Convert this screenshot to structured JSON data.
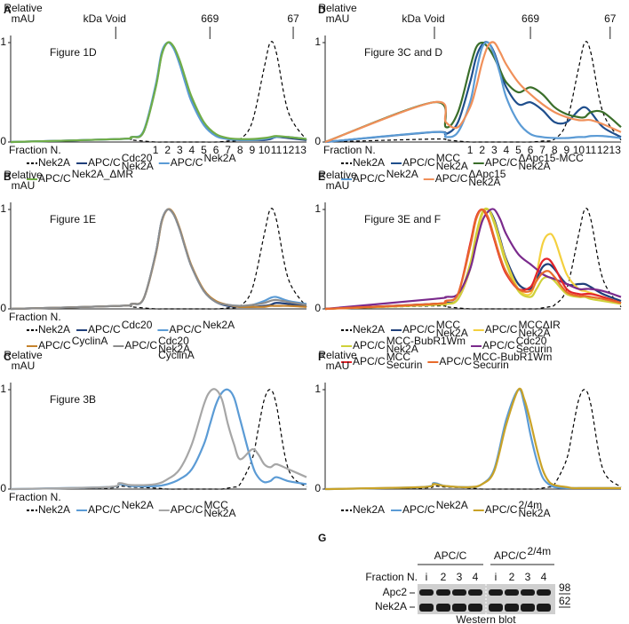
{
  "chart_data": [
    {
      "type": "line",
      "letter": "A",
      "title": "Figure 1D",
      "ylabel": [
        "Relative",
        "mAU"
      ],
      "xlabel": "Fraction N.",
      "kda_label": "kDa",
      "markers": [
        {
          "label": "Void",
          "x": -2.3
        },
        {
          "label": "669",
          "x": 5.5
        },
        {
          "label": "67",
          "x": 12.4
        }
      ],
      "x": [
        -11,
        -2,
        -1,
        0,
        1,
        1.5,
        2,
        2.5,
        3,
        3.5,
        4,
        5,
        6,
        7,
        8,
        9,
        10,
        10.5,
        11,
        12,
        13.5
      ],
      "xlim": [
        -11,
        13.5
      ],
      "ylim": [
        0,
        1
      ],
      "yticks": [
        0,
        1
      ],
      "xticks": [
        1,
        2,
        3,
        4,
        5,
        6,
        7,
        8,
        9,
        10,
        11,
        12,
        13
      ],
      "series": [
        {
          "name": "Nek2A",
          "color": "#000000",
          "dash": true,
          "values": [
            0,
            0.03,
            0.02,
            0.01,
            0,
            0,
            0,
            0,
            0,
            0,
            0,
            0,
            0,
            0.01,
            0.03,
            0.2,
            0.75,
            1.0,
            0.9,
            0.3,
            0.02
          ]
        },
        {
          "name": "APC/C",
          "sup": "Cdc20",
          "sub": "Nek2A",
          "color": "#1f3f7a",
          "values": [
            0,
            0.03,
            0.05,
            0.1,
            0.55,
            0.88,
            1.0,
            0.95,
            0.8,
            0.6,
            0.42,
            0.18,
            0.07,
            0.03,
            0.02,
            0.02,
            0.02,
            0.03,
            0.05,
            0.04,
            0.02
          ]
        },
        {
          "name": "APC/C",
          "sup": "Nek2A",
          "color": "#5b9bd5",
          "values": [
            0,
            0.03,
            0.05,
            0.11,
            0.57,
            0.9,
            1.0,
            0.94,
            0.78,
            0.58,
            0.4,
            0.17,
            0.06,
            0.03,
            0.02,
            0.02,
            0.03,
            0.04,
            0.05,
            0.05,
            0.03
          ]
        },
        {
          "name": "APC/C",
          "sup": "Nek2A_ΔMR",
          "color": "#70ad47",
          "values": [
            0,
            0.03,
            0.05,
            0.1,
            0.54,
            0.87,
            1.0,
            0.96,
            0.82,
            0.63,
            0.45,
            0.2,
            0.08,
            0.04,
            0.03,
            0.03,
            0.04,
            0.05,
            0.06,
            0.05,
            0.03
          ]
        }
      ]
    },
    {
      "type": "line",
      "letter": "B",
      "title": "Figure 1E",
      "ylabel": [
        "Relative",
        "mAU"
      ],
      "xlabel": "Fraction N.",
      "x": [
        -11,
        -2,
        -1,
        0,
        1,
        1.5,
        2,
        2.5,
        3,
        3.5,
        4,
        5,
        6,
        7,
        8,
        9,
        10,
        10.5,
        11,
        12,
        13.5
      ],
      "xlim": [
        -11,
        13.5
      ],
      "ylim": [
        0,
        1
      ],
      "yticks": [
        0,
        1
      ],
      "series": [
        {
          "name": "Nek2A",
          "color": "#000000",
          "dash": true,
          "values": [
            0,
            0.03,
            0.02,
            0.01,
            0,
            0,
            0,
            0,
            0,
            0,
            0,
            0,
            0,
            0.01,
            0.03,
            0.2,
            0.75,
            1.0,
            0.9,
            0.3,
            0.02
          ]
        },
        {
          "name": "APC/C",
          "sup": "Cdc20",
          "color": "#1f3f7a",
          "values": [
            0,
            0.03,
            0.05,
            0.1,
            0.55,
            0.88,
            1.0,
            0.95,
            0.8,
            0.6,
            0.42,
            0.18,
            0.07,
            0.03,
            0.02,
            0.02,
            0.03,
            0.04,
            0.06,
            0.05,
            0.03
          ]
        },
        {
          "name": "APC/C",
          "sup": "Nek2A",
          "color": "#5b9bd5",
          "values": [
            0,
            0.03,
            0.05,
            0.1,
            0.55,
            0.88,
            1.0,
            0.95,
            0.8,
            0.6,
            0.42,
            0.18,
            0.07,
            0.04,
            0.03,
            0.04,
            0.08,
            0.11,
            0.12,
            0.08,
            0.05
          ]
        },
        {
          "name": "APC/C",
          "sup": "CyclinA",
          "color": "#c5832d",
          "values": [
            0,
            0.03,
            0.05,
            0.1,
            0.54,
            0.87,
            1.0,
            0.96,
            0.81,
            0.61,
            0.43,
            0.19,
            0.08,
            0.04,
            0.02,
            0.02,
            0.02,
            0.03,
            0.03,
            0.03,
            0.02
          ]
        },
        {
          "name": "APC/C",
          "sup": "Cdc20",
          "sub": [
            "Nek2A",
            "CyclinA"
          ],
          "color": "#8c8c8c",
          "values": [
            0,
            0.03,
            0.05,
            0.1,
            0.55,
            0.88,
            1.0,
            0.95,
            0.8,
            0.6,
            0.42,
            0.18,
            0.07,
            0.04,
            0.03,
            0.04,
            0.06,
            0.08,
            0.09,
            0.07,
            0.04
          ]
        }
      ]
    },
    {
      "type": "line",
      "letter": "C",
      "title": "Figure 3B",
      "ylabel": [
        "Relative",
        "mAU"
      ],
      "xlabel": "Fraction N.",
      "x": [
        -11,
        -3,
        -2,
        -1,
        1,
        2,
        3,
        4,
        5,
        5.5,
        6,
        6.5,
        7,
        7.5,
        8,
        9,
        9.5,
        10,
        10.5,
        11,
        12,
        13.5
      ],
      "xlim": [
        -11,
        13.5
      ],
      "ylim": [
        0,
        1
      ],
      "yticks": [
        0,
        1
      ],
      "series": [
        {
          "name": "Nek2A",
          "color": "#000000",
          "dash": true,
          "values": [
            0,
            0.01,
            0.03,
            0.02,
            0.01,
            0,
            0,
            0,
            0,
            0,
            0,
            0,
            0.01,
            0.02,
            0.05,
            0.3,
            0.6,
            0.9,
            1.0,
            0.85,
            0.2,
            0.02
          ]
        },
        {
          "name": "APC/C",
          "sup": "Nek2A",
          "color": "#5b9bd5",
          "values": [
            0,
            0.02,
            0.05,
            0.03,
            0.03,
            0.05,
            0.1,
            0.2,
            0.45,
            0.65,
            0.85,
            0.97,
            1.0,
            0.92,
            0.7,
            0.25,
            0.12,
            0.07,
            0.08,
            0.12,
            0.08,
            0.05
          ]
        },
        {
          "name": "APC/C",
          "sup": "MCC",
          "sub": "Nek2A",
          "color": "#a6a6a6",
          "values": [
            0,
            0.02,
            0.06,
            0.04,
            0.05,
            0.1,
            0.2,
            0.45,
            0.85,
            0.98,
            1.0,
            0.9,
            0.65,
            0.45,
            0.3,
            0.4,
            0.35,
            0.25,
            0.22,
            0.25,
            0.2,
            0.12
          ]
        }
      ]
    },
    {
      "type": "line",
      "letter": "D",
      "title": "Figure 3C and D",
      "ylabel": [
        "Relative",
        "mAU"
      ],
      "xlabel": "Fraction N.",
      "kda_label": "kDa",
      "markers": [
        {
          "label": "Void",
          "x": -1.95
        },
        {
          "label": "669",
          "x": 6.0
        },
        {
          "label": "67",
          "x": 12.6
        }
      ],
      "x": [
        -11,
        -2,
        -1,
        0,
        1,
        1.5,
        2,
        2.5,
        3,
        3.5,
        4,
        5,
        6,
        7,
        8,
        9,
        10,
        10.5,
        11,
        12,
        13.5
      ],
      "xlim": [
        -11,
        13.5
      ],
      "ylim": [
        0,
        1
      ],
      "yticks": [
        0,
        1
      ],
      "xticks": [
        1,
        2,
        3,
        4,
        5,
        6,
        7,
        8,
        9,
        10,
        11,
        12,
        13
      ],
      "series": [
        {
          "name": "Nek2A",
          "color": "#000000",
          "dash": true,
          "values": [
            0,
            0.03,
            0.02,
            0.01,
            0,
            0,
            0,
            0,
            0,
            0,
            0,
            0,
            0,
            0.01,
            0.03,
            0.2,
            0.75,
            1.0,
            0.9,
            0.3,
            0.02
          ]
        },
        {
          "name": "APC/C",
          "sup": "MCC",
          "sub": "Nek2A",
          "color": "#1f4e8c",
          "values": [
            0,
            0.1,
            0.08,
            0.2,
            0.6,
            0.85,
            0.98,
            1.0,
            0.9,
            0.72,
            0.55,
            0.38,
            0.4,
            0.32,
            0.2,
            0.2,
            0.32,
            0.35,
            0.3,
            0.15,
            0.05
          ]
        },
        {
          "name": "APC/C",
          "sup": "ΔApc15-MCC",
          "sub": "Nek2A",
          "color": "#3a6e2a",
          "values": [
            0,
            0.4,
            0.15,
            0.3,
            0.75,
            0.95,
            1.0,
            0.95,
            0.85,
            0.72,
            0.6,
            0.5,
            0.55,
            0.48,
            0.35,
            0.28,
            0.25,
            0.25,
            0.3,
            0.3,
            0.15
          ]
        },
        {
          "name": "APC/C",
          "sup": "Nek2A",
          "color": "#5b9bd5",
          "values": [
            0,
            0.1,
            0.05,
            0.1,
            0.4,
            0.7,
            0.95,
            1.0,
            0.88,
            0.68,
            0.45,
            0.2,
            0.08,
            0.05,
            0.04,
            0.04,
            0.05,
            0.05,
            0.06,
            0.06,
            0.04
          ]
        },
        {
          "name": "APC/C",
          "sup": "ΔApc15",
          "sub": "Nek2A",
          "color": "#f0905a",
          "values": [
            0,
            0.4,
            0.2,
            0.15,
            0.35,
            0.55,
            0.8,
            0.97,
            1.0,
            0.9,
            0.78,
            0.6,
            0.48,
            0.38,
            0.3,
            0.25,
            0.22,
            0.22,
            0.22,
            0.18,
            0.1
          ]
        }
      ]
    },
    {
      "type": "line",
      "letter": "E",
      "title": "Figure 3E and F",
      "ylabel": [
        "Relative",
        "mAU"
      ],
      "x": [
        -11,
        -2,
        -1,
        0,
        1,
        1.5,
        2,
        2.5,
        3,
        3.5,
        4,
        5,
        6,
        6.5,
        7,
        7.5,
        8,
        9,
        10,
        10.5,
        11,
        12,
        13.5
      ],
      "xlim": [
        -11,
        13.5
      ],
      "ylim": [
        0,
        1
      ],
      "yticks": [
        0,
        1
      ],
      "series": [
        {
          "name": "Nek2A",
          "color": "#000000",
          "dash": true,
          "values": [
            0,
            0.03,
            0.02,
            0.01,
            0,
            0,
            0,
            0,
            0,
            0,
            0,
            0,
            0,
            0,
            0.01,
            0.02,
            0.04,
            0.2,
            0.75,
            1.0,
            0.9,
            0.3,
            0.02
          ]
        },
        {
          "name": "APC/C",
          "sup": "MCC",
          "sub": "Nek2A",
          "color": "#1f3f7a",
          "values": [
            0,
            0.05,
            0.06,
            0.1,
            0.4,
            0.7,
            0.95,
            1.0,
            0.9,
            0.7,
            0.5,
            0.25,
            0.2,
            0.3,
            0.42,
            0.45,
            0.4,
            0.25,
            0.25,
            0.25,
            0.22,
            0.15,
            0.08
          ]
        },
        {
          "name": "APC/C",
          "sup": "MCCΔIR",
          "sub": "Nek2A",
          "color": "#f4d03f",
          "values": [
            0,
            0.04,
            0.05,
            0.1,
            0.4,
            0.7,
            0.95,
            1.0,
            0.88,
            0.68,
            0.48,
            0.2,
            0.15,
            0.35,
            0.65,
            0.75,
            0.7,
            0.35,
            0.2,
            0.18,
            0.16,
            0.12,
            0.06
          ]
        },
        {
          "name": "APC/C",
          "sup": "MCC-BubR1Wm",
          "sub": "Nek2A",
          "color": "#cfd13a",
          "values": [
            0,
            0.04,
            0.05,
            0.1,
            0.45,
            0.75,
            0.97,
            1.0,
            0.86,
            0.65,
            0.45,
            0.18,
            0.12,
            0.2,
            0.3,
            0.32,
            0.28,
            0.15,
            0.12,
            0.12,
            0.1,
            0.08,
            0.05
          ]
        },
        {
          "name": "APC/C",
          "sup": "Cdc20",
          "sub": "Securin",
          "color": "#7a2a8c",
          "values": [
            0,
            0.1,
            0.12,
            0.15,
            0.4,
            0.65,
            0.88,
            0.98,
            1.0,
            0.9,
            0.75,
            0.55,
            0.45,
            0.4,
            0.35,
            0.32,
            0.3,
            0.25,
            0.2,
            0.2,
            0.2,
            0.18,
            0.12
          ]
        },
        {
          "name": "APC/C",
          "sup": "MCC",
          "sub": "Securin",
          "color": "#e3242b",
          "values": [
            0,
            0.05,
            0.08,
            0.15,
            0.65,
            0.92,
            1.0,
            0.9,
            0.7,
            0.5,
            0.35,
            0.2,
            0.22,
            0.35,
            0.48,
            0.5,
            0.42,
            0.2,
            0.15,
            0.15,
            0.15,
            0.12,
            0.06
          ]
        },
        {
          "name": "APC/C",
          "sup": "MCC-BubR1Wm",
          "sub": "Securin",
          "color": "#e86a2b",
          "values": [
            0,
            0.05,
            0.08,
            0.15,
            0.62,
            0.9,
            1.0,
            0.92,
            0.72,
            0.52,
            0.37,
            0.2,
            0.18,
            0.28,
            0.36,
            0.38,
            0.32,
            0.17,
            0.13,
            0.13,
            0.12,
            0.1,
            0.06
          ]
        }
      ]
    },
    {
      "type": "line",
      "letter": "F",
      "ylabel": [
        "Relative",
        "mAU"
      ],
      "x": [
        -11,
        -3,
        -2,
        -1,
        1,
        2,
        3,
        4,
        5,
        5.5,
        6,
        6.5,
        7,
        7.5,
        8,
        9,
        9.5,
        10,
        10.5,
        11,
        12,
        13.5
      ],
      "xlim": [
        -11,
        13.5
      ],
      "ylim": [
        0,
        1
      ],
      "yticks": [
        0,
        1
      ],
      "series": [
        {
          "name": "Nek2A",
          "color": "#000000",
          "dash": true,
          "values": [
            0,
            0.01,
            0.03,
            0.02,
            0.01,
            0,
            0,
            0,
            0,
            0,
            0,
            0,
            0.01,
            0.02,
            0.05,
            0.3,
            0.6,
            0.9,
            1.0,
            0.85,
            0.2,
            0.02
          ]
        },
        {
          "name": "APC/C",
          "sup": "Nek2A",
          "color": "#5b9bd5",
          "values": [
            0,
            0.02,
            0.06,
            0.03,
            0.02,
            0.05,
            0.2,
            0.7,
            1.0,
            0.85,
            0.55,
            0.3,
            0.12,
            0.05,
            0.02,
            0.01,
            0.01,
            0.01,
            0.01,
            0.01,
            0.01,
            0.01
          ]
        },
        {
          "name": "APC/C",
          "sup": "2/4m",
          "sub": "Nek2A",
          "color": "#c9a227",
          "values": [
            0,
            0.02,
            0.05,
            0.03,
            0.02,
            0.05,
            0.18,
            0.65,
            1.0,
            0.9,
            0.68,
            0.42,
            0.2,
            0.08,
            0.04,
            0.02,
            0.01,
            0.01,
            0.01,
            0.01,
            0.01,
            0.01
          ]
        }
      ]
    }
  ],
  "blot": {
    "letter": "G",
    "groups": [
      {
        "name": "APC/C"
      },
      {
        "name": "APC/C",
        "sup": "2/4m"
      }
    ],
    "fraction_label": "Fraction N.",
    "lanes": [
      "i",
      "2",
      "3",
      "4",
      "i",
      "2",
      "3",
      "4"
    ],
    "rows": [
      "Apc2",
      "Nek2A"
    ],
    "markers": [
      "98",
      "62"
    ],
    "caption": "Western blot"
  }
}
